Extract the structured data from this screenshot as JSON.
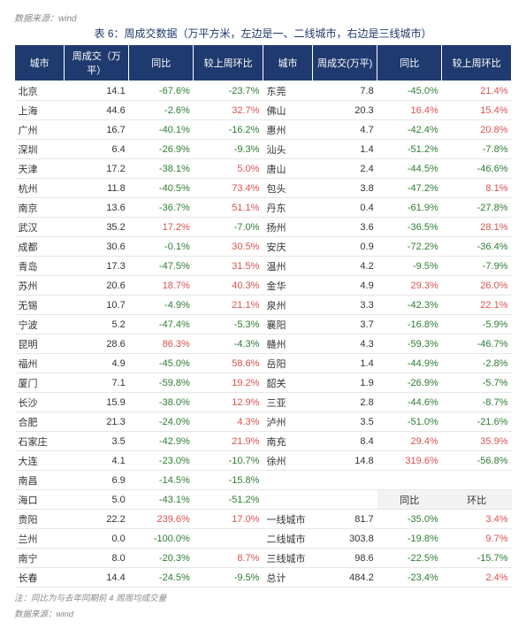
{
  "source_top": "数据来源：wind",
  "caption": "表 6：周成交数据（万平方米，左边是一、二线城市，右边是三线城市）",
  "headers": {
    "city": "城市",
    "vol": "周成交（万平）",
    "yoy": "同比",
    "wow": "较上周环比",
    "vol2": "周成交(万平)",
    "sum_yoy": "同比",
    "sum_wow": "环比"
  },
  "left": [
    {
      "city": "北京",
      "vol": "14.1",
      "yoy": "-67.6%",
      "wow": "-23.7%"
    },
    {
      "city": "上海",
      "vol": "44.6",
      "yoy": "-2.6%",
      "wow": "32.7%"
    },
    {
      "city": "广州",
      "vol": "16.7",
      "yoy": "-40.1%",
      "wow": "-16.2%"
    },
    {
      "city": "深圳",
      "vol": "6.4",
      "yoy": "-26.9%",
      "wow": "-9.3%"
    },
    {
      "city": "天津",
      "vol": "17.2",
      "yoy": "-38.1%",
      "wow": "5.0%"
    },
    {
      "city": "杭州",
      "vol": "11.8",
      "yoy": "-40.5%",
      "wow": "73.4%"
    },
    {
      "city": "南京",
      "vol": "13.6",
      "yoy": "-36.7%",
      "wow": "51.1%"
    },
    {
      "city": "武汉",
      "vol": "35.2",
      "yoy": "17.2%",
      "wow": "-7.0%"
    },
    {
      "city": "成都",
      "vol": "30.6",
      "yoy": "-0.1%",
      "wow": "30.5%"
    },
    {
      "city": "青岛",
      "vol": "17.3",
      "yoy": "-47.5%",
      "wow": "31.5%"
    },
    {
      "city": "苏州",
      "vol": "20.6",
      "yoy": "18.7%",
      "wow": "40.3%"
    },
    {
      "city": "无锡",
      "vol": "10.7",
      "yoy": "-4.9%",
      "wow": "21.1%"
    },
    {
      "city": "宁波",
      "vol": "5.2",
      "yoy": "-47.4%",
      "wow": "-5.3%"
    },
    {
      "city": "昆明",
      "vol": "28.6",
      "yoy": "86.3%",
      "wow": "-4.3%"
    },
    {
      "city": "福州",
      "vol": "4.9",
      "yoy": "-45.0%",
      "wow": "58.6%"
    },
    {
      "city": "厦门",
      "vol": "7.1",
      "yoy": "-59.8%",
      "wow": "19.2%"
    },
    {
      "city": "长沙",
      "vol": "15.9",
      "yoy": "-38.0%",
      "wow": "12.9%"
    },
    {
      "city": "合肥",
      "vol": "21.3",
      "yoy": "-24.0%",
      "wow": "4.3%"
    },
    {
      "city": "石家庄",
      "vol": "3.5",
      "yoy": "-42.9%",
      "wow": "21.9%"
    },
    {
      "city": "大连",
      "vol": "4.1",
      "yoy": "-23.0%",
      "wow": "-10.7%"
    },
    {
      "city": "南昌",
      "vol": "6.9",
      "yoy": "-14.5%",
      "wow": "-15.8%"
    },
    {
      "city": "海口",
      "vol": "5.0",
      "yoy": "-43.1%",
      "wow": "-51.2%"
    },
    {
      "city": "贵阳",
      "vol": "22.2",
      "yoy": "239.6%",
      "wow": "17.0%"
    },
    {
      "city": "兰州",
      "vol": "0.0",
      "yoy": "-100.0%",
      "wow": ""
    },
    {
      "city": "南宁",
      "vol": "8.0",
      "yoy": "-20.3%",
      "wow": "8.7%"
    },
    {
      "city": "长春",
      "vol": "14.4",
      "yoy": "-24.5%",
      "wow": "-9.5%"
    }
  ],
  "right": [
    {
      "city": "东莞",
      "vol": "7.8",
      "yoy": "-45.0%",
      "wow": "21.4%"
    },
    {
      "city": "佛山",
      "vol": "20.3",
      "yoy": "16.4%",
      "wow": "15.4%"
    },
    {
      "city": "惠州",
      "vol": "4.7",
      "yoy": "-42.4%",
      "wow": "20.8%"
    },
    {
      "city": "汕头",
      "vol": "1.4",
      "yoy": "-51.2%",
      "wow": "-7.8%"
    },
    {
      "city": "唐山",
      "vol": "2.4",
      "yoy": "-44.5%",
      "wow": "-46.6%"
    },
    {
      "city": "包头",
      "vol": "3.8",
      "yoy": "-47.2%",
      "wow": "8.1%"
    },
    {
      "city": "丹东",
      "vol": "0.4",
      "yoy": "-61.9%",
      "wow": "-27.8%"
    },
    {
      "city": "扬州",
      "vol": "3.6",
      "yoy": "-36.5%",
      "wow": "28.1%"
    },
    {
      "city": "安庆",
      "vol": "0.9",
      "yoy": "-72.2%",
      "wow": "-36.4%"
    },
    {
      "city": "温州",
      "vol": "4.2",
      "yoy": "-9.5%",
      "wow": "-7.9%"
    },
    {
      "city": "金华",
      "vol": "4.9",
      "yoy": "29.3%",
      "wow": "26.0%"
    },
    {
      "city": "泉州",
      "vol": "3.3",
      "yoy": "-42.3%",
      "wow": "22.1%"
    },
    {
      "city": "襄阳",
      "vol": "3.7",
      "yoy": "-16.8%",
      "wow": "-5.9%"
    },
    {
      "city": "赣州",
      "vol": "4.3",
      "yoy": "-59.3%",
      "wow": "-46.7%"
    },
    {
      "city": "岳阳",
      "vol": "1.4",
      "yoy": "-44.9%",
      "wow": "-2.8%"
    },
    {
      "city": "韶关",
      "vol": "1.9",
      "yoy": "-26.9%",
      "wow": "-5.7%"
    },
    {
      "city": "三亚",
      "vol": "2.8",
      "yoy": "-44.6%",
      "wow": "-8.7%"
    },
    {
      "city": "泸州",
      "vol": "3.5",
      "yoy": "-51.0%",
      "wow": "-21.6%"
    },
    {
      "city": "南充",
      "vol": "8.4",
      "yoy": "29.4%",
      "wow": "35.9%"
    },
    {
      "city": "徐州",
      "vol": "14.8",
      "yoy": "319.6%",
      "wow": "-56.8%"
    }
  ],
  "summary": [
    {
      "city": "一线城市",
      "vol": "81.7",
      "yoy": "-35.0%",
      "wow": "3.4%"
    },
    {
      "city": "二线城市",
      "vol": "303.8",
      "yoy": "-19.8%",
      "wow": "9.7%"
    },
    {
      "city": "三线城市",
      "vol": "98.6",
      "yoy": "-22.5%",
      "wow": "-15.7%"
    },
    {
      "city": "总计",
      "vol": "484.2",
      "yoy": "-23.4%",
      "wow": "2.4%"
    }
  ],
  "footnote1": "注：同比为与去年同期前 4 周周均成交量",
  "footnote2": "数据来源：wind",
  "colors": {
    "pos": "#d9534f",
    "neg": "#2e7d32"
  }
}
